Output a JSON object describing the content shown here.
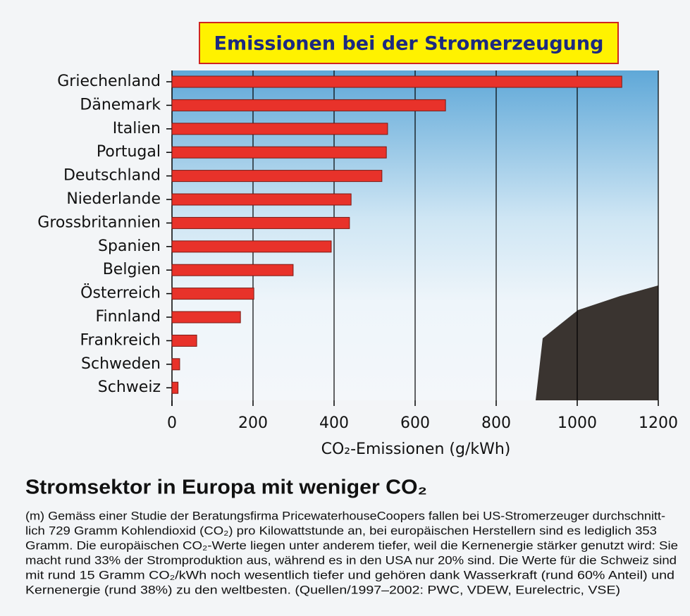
{
  "chart_data": {
    "type": "bar",
    "orientation": "horizontal",
    "title": "Emissionen bei der Stromerzeugung",
    "x_label": "CO₂-Emissionen (g/kWh)",
    "categories": [
      "Griechenland",
      "Dänemark",
      "Italien",
      "Portugal",
      "Deutschland",
      "Niederlande",
      "Grossbritannien",
      "Spanien",
      "Belgien",
      "Österreich",
      "Finnland",
      "Frankreich",
      "Schweden",
      "Schweiz"
    ],
    "values": [
      1110,
      675,
      532,
      529,
      518,
      442,
      438,
      393,
      299,
      202,
      169,
      61,
      19,
      15
    ],
    "color": "#e8322a",
    "xlim": [
      0,
      1200
    ],
    "xticks": [
      0,
      200,
      400,
      600,
      800,
      1000,
      1200
    ],
    "grid": true
  },
  "article": {
    "headline": "Stromsektor in Europa mit weniger CO₂",
    "lines": [
      "(m) Gemäss einer Studie der Beratungsfirma PricewaterhouseCoopers fallen bei US-Stromerzeuger durchschnitt-",
      "lich 729 Gramm Kohlendioxid (CO₂) pro Kilowattstunde an, bei europäischen Herstellern sind es lediglich 353",
      "Gramm. Die europäischen CO₂-Werte liegen unter anderem tiefer, weil die Kernenergie stärker genutzt wird: Sie",
      "macht rund 33% der Stromproduktion aus, während es in den USA nur 20% sind. Die Werte für die Schweiz sind",
      "mit rund 15 Gramm CO₂/kWh noch wesentlich tiefer und gehören dank Wasserkraft (rund 60% Anteil) und",
      "Kernenergie (rund 38%) zu den weltbesten. (Quellen/1997–2002: PWC, VDEW, Eurelectric, VSE)"
    ]
  }
}
